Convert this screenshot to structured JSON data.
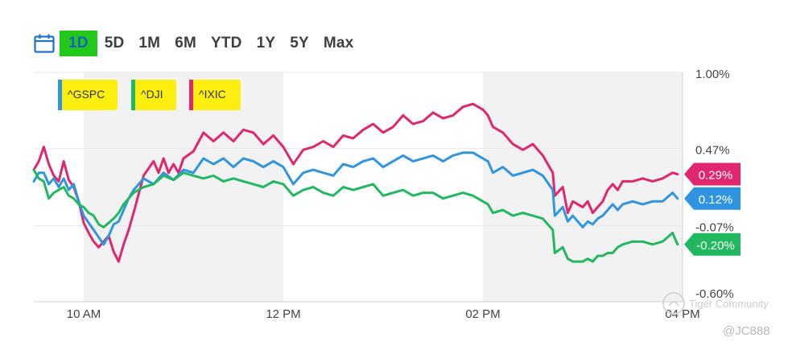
{
  "range_selector": {
    "items": [
      "1D",
      "5D",
      "1M",
      "6M",
      "YTD",
      "1Y",
      "5Y",
      "Max"
    ],
    "active": "1D"
  },
  "watermark": {
    "brand": "Tiger Community",
    "handle": "@JC888"
  },
  "colors": {
    "gspc": "#2f95e0",
    "dji": "#21b85f",
    "ixic": "#e0266f",
    "highlight": "#fcef10",
    "active_range_bg": "#22c91a",
    "calendar_icon": "#1f6fd4",
    "session_shade": "#f2f2f2"
  },
  "chart_data": {
    "type": "line",
    "x_ticks": [
      "10 AM",
      "12 PM",
      "02 PM",
      "04 PM"
    ],
    "x_domain": [
      9.5,
      16.0
    ],
    "y_ticks": [
      "1.00%",
      "0.47%",
      "-0.07%",
      "-0.60%"
    ],
    "ylim": [
      -0.6,
      1.0
    ],
    "shaded_bands": [
      [
        10.0,
        12.0
      ],
      [
        14.0,
        16.0
      ]
    ],
    "legend": [
      "^GSPC",
      "^DJI",
      "^IXIC"
    ],
    "series": [
      {
        "name": "^IXIC",
        "last_label": "0.29%",
        "points": [
          [
            9.5,
            0.32
          ],
          [
            9.55,
            0.38
          ],
          [
            9.6,
            0.48
          ],
          [
            9.65,
            0.36
          ],
          [
            9.7,
            0.28
          ],
          [
            9.75,
            0.24
          ],
          [
            9.8,
            0.38
          ],
          [
            9.85,
            0.25
          ],
          [
            9.9,
            0.2
          ],
          [
            9.95,
            0.1
          ],
          [
            10.0,
            -0.05
          ],
          [
            10.05,
            -0.12
          ],
          [
            10.1,
            -0.18
          ],
          [
            10.15,
            -0.22
          ],
          [
            10.2,
            -0.18
          ],
          [
            10.25,
            -0.14
          ],
          [
            10.3,
            -0.25
          ],
          [
            10.35,
            -0.32
          ],
          [
            10.4,
            -0.2
          ],
          [
            10.45,
            -0.1
          ],
          [
            10.5,
            0.02
          ],
          [
            10.55,
            0.15
          ],
          [
            10.6,
            0.28
          ],
          [
            10.7,
            0.38
          ],
          [
            10.75,
            0.3
          ],
          [
            10.8,
            0.4
          ],
          [
            10.85,
            0.3
          ],
          [
            10.9,
            0.36
          ],
          [
            10.95,
            0.3
          ],
          [
            11.0,
            0.4
          ],
          [
            11.1,
            0.45
          ],
          [
            11.2,
            0.58
          ],
          [
            11.3,
            0.52
          ],
          [
            11.4,
            0.58
          ],
          [
            11.5,
            0.52
          ],
          [
            11.6,
            0.6
          ],
          [
            11.7,
            0.58
          ],
          [
            11.8,
            0.5
          ],
          [
            11.9,
            0.56
          ],
          [
            12.0,
            0.48
          ],
          [
            12.1,
            0.36
          ],
          [
            12.2,
            0.46
          ],
          [
            12.3,
            0.48
          ],
          [
            12.4,
            0.52
          ],
          [
            12.5,
            0.48
          ],
          [
            12.6,
            0.56
          ],
          [
            12.7,
            0.54
          ],
          [
            12.8,
            0.6
          ],
          [
            12.9,
            0.64
          ],
          [
            13.0,
            0.58
          ],
          [
            13.1,
            0.62
          ],
          [
            13.2,
            0.7
          ],
          [
            13.3,
            0.64
          ],
          [
            13.4,
            0.66
          ],
          [
            13.5,
            0.72
          ],
          [
            13.6,
            0.68
          ],
          [
            13.7,
            0.7
          ],
          [
            13.8,
            0.76
          ],
          [
            13.9,
            0.78
          ],
          [
            14.0,
            0.74
          ],
          [
            14.05,
            0.7
          ],
          [
            14.1,
            0.62
          ],
          [
            14.2,
            0.58
          ],
          [
            14.3,
            0.5
          ],
          [
            14.4,
            0.46
          ],
          [
            14.5,
            0.5
          ],
          [
            14.6,
            0.42
          ],
          [
            14.7,
            0.3
          ],
          [
            14.72,
            0.14
          ],
          [
            14.8,
            0.2
          ],
          [
            14.85,
            0.02
          ],
          [
            14.9,
            0.1
          ],
          [
            15.0,
            0.06
          ],
          [
            15.05,
            0.1
          ],
          [
            15.1,
            0.02
          ],
          [
            15.15,
            0.06
          ],
          [
            15.2,
            0.1
          ],
          [
            15.25,
            0.18
          ],
          [
            15.3,
            0.22
          ],
          [
            15.35,
            0.18
          ],
          [
            15.4,
            0.24
          ],
          [
            15.5,
            0.24
          ],
          [
            15.6,
            0.26
          ],
          [
            15.7,
            0.24
          ],
          [
            15.8,
            0.26
          ],
          [
            15.9,
            0.3
          ],
          [
            15.95,
            0.29
          ]
        ]
      },
      {
        "name": "^GSPC",
        "last_label": "0.12%",
        "points": [
          [
            9.5,
            0.24
          ],
          [
            9.55,
            0.3
          ],
          [
            9.6,
            0.3
          ],
          [
            9.65,
            0.22
          ],
          [
            9.7,
            0.26
          ],
          [
            9.75,
            0.2
          ],
          [
            9.8,
            0.26
          ],
          [
            9.85,
            0.18
          ],
          [
            9.9,
            0.22
          ],
          [
            9.95,
            0.1
          ],
          [
            10.0,
            0.0
          ],
          [
            10.05,
            -0.05
          ],
          [
            10.1,
            -0.1
          ],
          [
            10.15,
            -0.15
          ],
          [
            10.2,
            -0.2
          ],
          [
            10.25,
            -0.14
          ],
          [
            10.3,
            -0.06
          ],
          [
            10.35,
            -0.04
          ],
          [
            10.4,
            0.04
          ],
          [
            10.45,
            0.12
          ],
          [
            10.5,
            0.18
          ],
          [
            10.6,
            0.26
          ],
          [
            10.7,
            0.22
          ],
          [
            10.8,
            0.3
          ],
          [
            10.9,
            0.25
          ],
          [
            11.0,
            0.32
          ],
          [
            11.1,
            0.3
          ],
          [
            11.2,
            0.4
          ],
          [
            11.3,
            0.36
          ],
          [
            11.4,
            0.4
          ],
          [
            11.5,
            0.34
          ],
          [
            11.6,
            0.4
          ],
          [
            11.7,
            0.38
          ],
          [
            11.8,
            0.34
          ],
          [
            11.9,
            0.38
          ],
          [
            12.0,
            0.34
          ],
          [
            12.1,
            0.22
          ],
          [
            12.2,
            0.3
          ],
          [
            12.3,
            0.32
          ],
          [
            12.4,
            0.3
          ],
          [
            12.5,
            0.28
          ],
          [
            12.6,
            0.36
          ],
          [
            12.7,
            0.34
          ],
          [
            12.8,
            0.38
          ],
          [
            12.9,
            0.4
          ],
          [
            13.0,
            0.34
          ],
          [
            13.1,
            0.38
          ],
          [
            13.2,
            0.42
          ],
          [
            13.3,
            0.38
          ],
          [
            13.4,
            0.4
          ],
          [
            13.5,
            0.42
          ],
          [
            13.6,
            0.38
          ],
          [
            13.7,
            0.42
          ],
          [
            13.8,
            0.44
          ],
          [
            13.9,
            0.44
          ],
          [
            14.0,
            0.4
          ],
          [
            14.05,
            0.38
          ],
          [
            14.1,
            0.3
          ],
          [
            14.2,
            0.34
          ],
          [
            14.3,
            0.28
          ],
          [
            14.4,
            0.3
          ],
          [
            14.5,
            0.32
          ],
          [
            14.6,
            0.28
          ],
          [
            14.7,
            0.18
          ],
          [
            14.72,
            0.0
          ],
          [
            14.8,
            0.06
          ],
          [
            14.85,
            -0.04
          ],
          [
            14.9,
            0.0
          ],
          [
            15.0,
            -0.08
          ],
          [
            15.05,
            -0.04
          ],
          [
            15.1,
            -0.06
          ],
          [
            15.15,
            -0.02
          ],
          [
            15.2,
            0.0
          ],
          [
            15.25,
            0.04
          ],
          [
            15.3,
            0.08
          ],
          [
            15.35,
            0.04
          ],
          [
            15.4,
            0.08
          ],
          [
            15.5,
            0.1
          ],
          [
            15.6,
            0.08
          ],
          [
            15.7,
            0.1
          ],
          [
            15.8,
            0.1
          ],
          [
            15.9,
            0.16
          ],
          [
            15.95,
            0.12
          ]
        ]
      },
      {
        "name": "^DJI",
        "last_label": "-0.20%",
        "points": [
          [
            9.5,
            0.32
          ],
          [
            9.55,
            0.26
          ],
          [
            9.6,
            0.24
          ],
          [
            9.65,
            0.12
          ],
          [
            9.7,
            0.16
          ],
          [
            9.75,
            0.18
          ],
          [
            9.8,
            0.2
          ],
          [
            9.85,
            0.14
          ],
          [
            9.9,
            0.12
          ],
          [
            9.95,
            0.08
          ],
          [
            10.0,
            0.06
          ],
          [
            10.05,
            0.02
          ],
          [
            10.1,
            0.0
          ],
          [
            10.15,
            -0.06
          ],
          [
            10.2,
            -0.08
          ],
          [
            10.25,
            -0.05
          ],
          [
            10.3,
            -0.02
          ],
          [
            10.35,
            0.02
          ],
          [
            10.4,
            0.08
          ],
          [
            10.45,
            0.12
          ],
          [
            10.5,
            0.16
          ],
          [
            10.6,
            0.2
          ],
          [
            10.7,
            0.22
          ],
          [
            10.8,
            0.28
          ],
          [
            10.9,
            0.25
          ],
          [
            11.0,
            0.3
          ],
          [
            11.1,
            0.28
          ],
          [
            11.2,
            0.26
          ],
          [
            11.3,
            0.28
          ],
          [
            11.4,
            0.24
          ],
          [
            11.5,
            0.26
          ],
          [
            11.6,
            0.24
          ],
          [
            11.7,
            0.22
          ],
          [
            11.8,
            0.2
          ],
          [
            11.9,
            0.24
          ],
          [
            12.0,
            0.22
          ],
          [
            12.1,
            0.14
          ],
          [
            12.2,
            0.18
          ],
          [
            12.3,
            0.2
          ],
          [
            12.4,
            0.16
          ],
          [
            12.5,
            0.14
          ],
          [
            12.6,
            0.2
          ],
          [
            12.7,
            0.18
          ],
          [
            12.8,
            0.2
          ],
          [
            12.9,
            0.22
          ],
          [
            13.0,
            0.14
          ],
          [
            13.1,
            0.16
          ],
          [
            13.2,
            0.18
          ],
          [
            13.3,
            0.14
          ],
          [
            13.4,
            0.16
          ],
          [
            13.5,
            0.16
          ],
          [
            13.6,
            0.12
          ],
          [
            13.7,
            0.14
          ],
          [
            13.8,
            0.16
          ],
          [
            13.9,
            0.14
          ],
          [
            14.0,
            0.1
          ],
          [
            14.05,
            0.08
          ],
          [
            14.1,
            0.02
          ],
          [
            14.2,
            0.04
          ],
          [
            14.3,
            0.0
          ],
          [
            14.4,
            0.02
          ],
          [
            14.5,
            0.0
          ],
          [
            14.6,
            -0.02
          ],
          [
            14.7,
            -0.1
          ],
          [
            14.72,
            -0.26
          ],
          [
            14.8,
            -0.22
          ],
          [
            14.85,
            -0.3
          ],
          [
            14.9,
            -0.32
          ],
          [
            15.0,
            -0.32
          ],
          [
            15.05,
            -0.3
          ],
          [
            15.1,
            -0.32
          ],
          [
            15.15,
            -0.28
          ],
          [
            15.2,
            -0.28
          ],
          [
            15.25,
            -0.26
          ],
          [
            15.3,
            -0.26
          ],
          [
            15.35,
            -0.22
          ],
          [
            15.4,
            -0.2
          ],
          [
            15.5,
            -0.18
          ],
          [
            15.6,
            -0.18
          ],
          [
            15.7,
            -0.2
          ],
          [
            15.8,
            -0.18
          ],
          [
            15.9,
            -0.12
          ],
          [
            15.95,
            -0.2
          ]
        ]
      }
    ]
  }
}
